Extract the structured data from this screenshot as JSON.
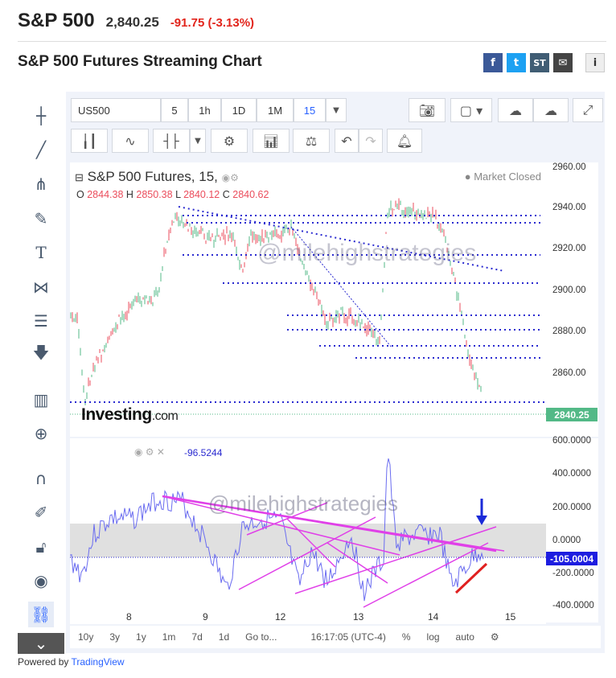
{
  "header": {
    "name": "S&P 500",
    "price": "2,840.25",
    "change": "-91.75 (-3.13%)"
  },
  "subtitle": "S&P 500 Futures Streaming Chart",
  "share": {
    "facebook": "f",
    "twitter": "t",
    "stocktwits": "ST",
    "mail": "✉",
    "info": "i"
  },
  "toolbar": {
    "symbol": "US500",
    "intervals": [
      "5",
      "1h",
      "1D",
      "1M",
      "15"
    ],
    "selected_interval": "15"
  },
  "chart": {
    "legend_title": "S&P 500 Futures, 15,",
    "market_status": "Market Closed",
    "ohlc": {
      "o_label": "O",
      "o": "2844.38",
      "h_label": "H",
      "h": "2850.38",
      "l_label": "L",
      "l": "2840.12",
      "c_label": "C",
      "c": "2840.62"
    },
    "watermark": "@milehighstrategies",
    "brand": "Investing",
    "brand_suffix": ".com",
    "price_ticks": [
      "2960.00",
      "2940.00",
      "2920.00",
      "2900.00",
      "2880.00",
      "2860.00"
    ],
    "last_price": "2840.25",
    "indicator_value": "-96.5244",
    "indicator_ticks": [
      "600.0000",
      "400.0000",
      "200.0000",
      "0.0000",
      "-200.0000",
      "-400.0000"
    ],
    "indicator_last": "-105.0004",
    "indicator_watermark": "@milehighstrategies",
    "x_ticks": [
      "8",
      "9",
      "12",
      "13",
      "14",
      "15"
    ]
  },
  "bottom": {
    "ranges": [
      "10y",
      "3y",
      "1y",
      "1m",
      "7d",
      "1d"
    ],
    "goto": "Go to...",
    "time": "16:17:05 (UTC-4)",
    "percent": "%",
    "log": "log",
    "auto": "auto"
  },
  "footer": {
    "powered": "Powered by",
    "brand": "TradingView"
  },
  "colors": {
    "up": "#53b987",
    "down": "#eb4d5c",
    "blue_line": "#6a6cf0",
    "magenta": "#e040e8",
    "dotted": "#2a2ad0",
    "accent": "#2962ff"
  }
}
